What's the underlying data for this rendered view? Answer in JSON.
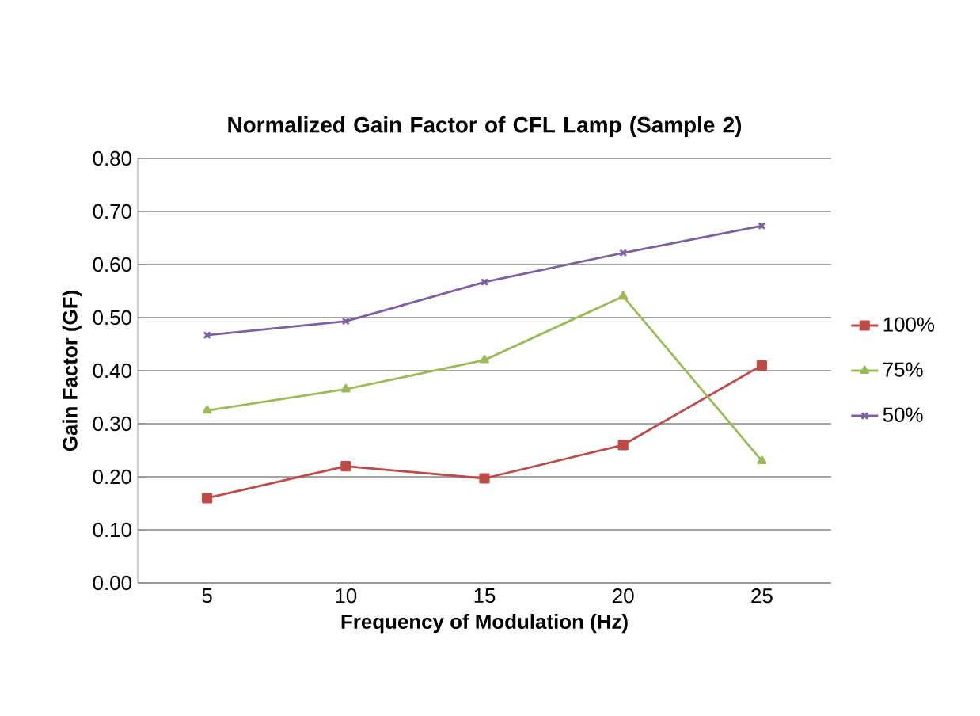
{
  "chart_data": {
    "type": "line",
    "title": "Normalized Gain Factor of CFL Lamp (Sample 2)",
    "xlabel": "Frequency of Modulation (Hz)",
    "ylabel": "Gain Factor (GF)",
    "categories": [
      "5",
      "10",
      "15",
      "20",
      "25"
    ],
    "series": [
      {
        "name": "100%",
        "color": "#be4b48",
        "marker": "square",
        "values": [
          0.16,
          0.22,
          0.197,
          0.26,
          0.41
        ]
      },
      {
        "name": "75%",
        "color": "#9bbb59",
        "marker": "triangle",
        "values": [
          0.325,
          0.365,
          0.42,
          0.54,
          0.23
        ]
      },
      {
        "name": "50%",
        "color": "#7d60a0",
        "marker": "cross",
        "values": [
          0.467,
          0.493,
          0.567,
          0.622,
          0.673
        ]
      }
    ],
    "ylim": [
      0,
      0.8
    ],
    "yticks": [
      {
        "value": 0,
        "label": "0.00"
      },
      {
        "value": 0.1,
        "label": "0.10"
      },
      {
        "value": 0.2,
        "label": "0.20"
      },
      {
        "value": 0.3,
        "label": "0.30"
      },
      {
        "value": 0.4,
        "label": "0.40"
      },
      {
        "value": 0.5,
        "label": "0.50"
      },
      {
        "value": 0.6,
        "label": "0.60"
      },
      {
        "value": 0.7,
        "label": "0.70"
      },
      {
        "value": 0.8,
        "label": "0.80"
      }
    ],
    "grid": "y",
    "legend": "right",
    "line_style": "solid"
  }
}
